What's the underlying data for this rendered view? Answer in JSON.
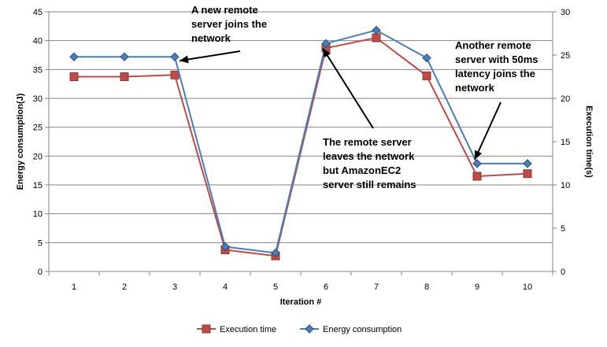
{
  "chart_data": {
    "type": "line",
    "xlabel": "Iteration #",
    "ylabel_left": "Energy consumption(J)",
    "ylabel_right": "Execution time(s)",
    "categories": [
      1,
      2,
      3,
      4,
      5,
      6,
      7,
      8,
      9,
      10
    ],
    "ylim_left": [
      0,
      45
    ],
    "yticks_left": [
      0,
      5,
      10,
      15,
      20,
      25,
      30,
      35,
      40,
      45
    ],
    "ylim_right": [
      0,
      30
    ],
    "yticks_right": [
      0,
      5,
      10,
      15,
      20,
      25,
      30
    ],
    "grid": "horizontal",
    "legend_position": "bottom",
    "series": [
      {
        "name": "Execution time",
        "axis": "right",
        "color": "#BE4B48",
        "marker": "square",
        "values": [
          22.5,
          22.5,
          22.7,
          2.5,
          1.8,
          25.8,
          27.0,
          22.6,
          11.0,
          11.3
        ]
      },
      {
        "name": "Energy consumption",
        "axis": "left",
        "color": "#4A7EBB",
        "marker": "diamond",
        "values": [
          37.2,
          37.2,
          37.2,
          4.3,
          3.2,
          39.5,
          41.8,
          37.0,
          18.7,
          18.7
        ]
      }
    ],
    "annotations": [
      {
        "lines": [
          "A new remote",
          "server joins the",
          "network"
        ],
        "target_index": 2,
        "target_series": 1
      },
      {
        "lines": [
          "The remote server",
          "leaves the network",
          "but AmazonEC2",
          "server still remains"
        ],
        "target_index": 5,
        "target_series": 1
      },
      {
        "lines": [
          "Another remote",
          "server with 50ms",
          "latency joins the",
          "network"
        ],
        "target_index": 8,
        "target_series": 1
      }
    ]
  }
}
